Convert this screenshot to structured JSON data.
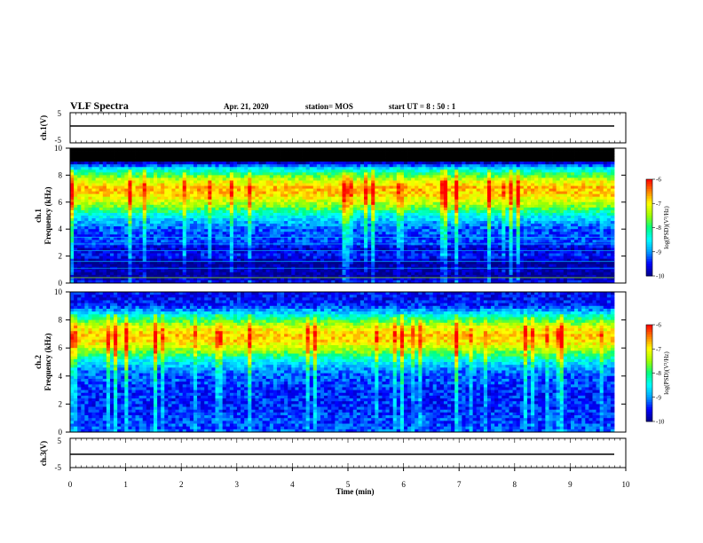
{
  "header": {
    "title": "VLF Spectra",
    "date": "Apr. 21, 2020",
    "station": "station= MOS",
    "start": "start  UT =   8 : 50 : 1"
  },
  "colors": {
    "cmap": [
      "#00008b",
      "#0000ff",
      "#00a0ff",
      "#00ffff",
      "#00ff80",
      "#a0ff00",
      "#ffff00",
      "#ff8000",
      "#ff0000",
      "#ffffff"
    ],
    "line": "#000000"
  },
  "chart_data": [
    {
      "type": "line",
      "panel": "ch1_waveform",
      "ylabel": "ch.1(V)",
      "ylim": [
        -5,
        5
      ],
      "yticks": [
        "5",
        "-5"
      ],
      "xlim": [
        0,
        10
      ],
      "series": [
        {
          "x": [
            0,
            9.85
          ],
          "y": [
            0,
            0
          ]
        }
      ]
    },
    {
      "type": "heatmap",
      "panel": "ch1_spectrogram",
      "ylabel": "ch.1\nFrequency (kHz)",
      "xlim": [
        0,
        9.85
      ],
      "ylim": [
        0,
        10
      ],
      "yticks": [
        "0",
        "2",
        "4",
        "6",
        "8",
        "10"
      ],
      "colorbar": {
        "label": "log(PSD)(V²/Hz)",
        "range": [
          -10,
          -6
        ],
        "ticks": [
          "-6",
          "-7",
          "-8",
          "-9",
          "-10"
        ]
      },
      "band_profile": {
        "freq_khz": [
          0,
          0.5,
          1,
          1.5,
          2,
          2.5,
          3,
          3.5,
          4,
          4.5,
          5,
          5.5,
          6,
          6.5,
          7,
          7.5,
          8,
          8.5,
          9,
          9.5,
          10
        ],
        "log_psd": [
          -9.5,
          -10,
          -9.8,
          -10,
          -9.4,
          -9.7,
          -9.3,
          -9.3,
          -9.2,
          -8.9,
          -8.5,
          -7.8,
          -7.3,
          -6.9,
          -6.7,
          -7.1,
          -7.8,
          -8.6,
          -10,
          -10,
          -10
        ]
      }
    },
    {
      "type": "heatmap",
      "panel": "ch2_spectrogram",
      "ylabel": "ch.2\nFrequency (kHz)",
      "xlim": [
        0,
        9.85
      ],
      "ylim": [
        0,
        10
      ],
      "yticks": [
        "0",
        "2",
        "4",
        "6",
        "8",
        "10"
      ],
      "colorbar": {
        "label": "log(PSD)(V²/Hz)",
        "range": [
          -10,
          -6
        ],
        "ticks": [
          "-6",
          "-7",
          "-8",
          "-9",
          "-10"
        ]
      },
      "band_profile": {
        "freq_khz": [
          0,
          0.5,
          1,
          1.5,
          2,
          2.5,
          3,
          3.5,
          4,
          4.5,
          5,
          5.5,
          6,
          6.5,
          7,
          7.5,
          8,
          8.5,
          9,
          9.5,
          10
        ],
        "log_psd": [
          -9.2,
          -9.3,
          -9.3,
          -9.4,
          -9.4,
          -9.4,
          -9.4,
          -9.3,
          -9.2,
          -9.0,
          -8.6,
          -7.9,
          -7.3,
          -6.9,
          -6.8,
          -7.2,
          -7.9,
          -8.7,
          -9.4,
          -9.5,
          -9.5
        ]
      }
    },
    {
      "type": "line",
      "panel": "ch3_waveform",
      "ylabel": "ch.3(V)",
      "ylim": [
        -5,
        5
      ],
      "yticks": [
        "5",
        "-5"
      ],
      "xlim": [
        0,
        10
      ],
      "xlabel": "Time  (min)",
      "xticks": [
        "0",
        "1",
        "2",
        "3",
        "4",
        "5",
        "6",
        "7",
        "8",
        "9",
        "10"
      ],
      "series": [
        {
          "x": [
            0,
            9.85
          ],
          "y": [
            0,
            0
          ]
        }
      ]
    }
  ]
}
